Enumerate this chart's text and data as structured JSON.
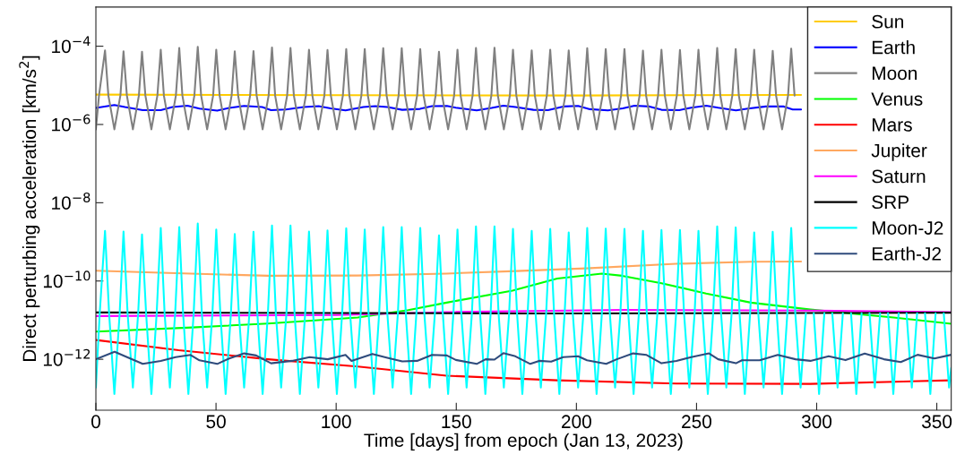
{
  "chart_data": {
    "type": "line",
    "xlabel": "Time [days] from epoch (Jan 13, 2023)",
    "ylabel": "Direct perturbing acceleration [km/s$^{2}$]",
    "log": "y",
    "legend": "top right",
    "line_style": "solid",
    "xlim": [
      0,
      356
    ],
    "xticks": [
      0,
      50,
      100,
      150,
      200,
      250,
      300,
      350
    ],
    "ylim": [
      5e-14,
      0.001
    ],
    "yticks": [
      {
        "value": 1e-12,
        "label": "10$^{−12}$"
      },
      {
        "value": 1e-10,
        "label": "10$^{−10}$"
      },
      {
        "value": 1e-08,
        "label": "10$^{−8}$"
      },
      {
        "value": 1e-06,
        "label": "10$^{−6}$"
      },
      {
        "value": 0.0001,
        "label": "10$^{−4}$"
      }
    ],
    "series": [
      {
        "name": "Sun",
        "color": "#ffcc00",
        "x": [
          0,
          100,
          200,
          293.5
        ],
        "values": [
          5.8e-06,
          5.6e-06,
          5.5e-06,
          5.7e-06
        ]
      },
      {
        "name": "Earth",
        "color": "#0000ff",
        "x": [
          0,
          7.7,
          12.1,
          19.5,
          27.0,
          31.9,
          38.1,
          43.1,
          50.5,
          55.5,
          61.7,
          69.2,
          72.9,
          79.1,
          86.5,
          92.7,
          97.7,
          103.9,
          111.3,
          116.3,
          121.3,
          127.5,
          134.9,
          139.9,
          146.1,
          149.8,
          158.5,
          164.7,
          169.6,
          174.6,
          182.1,
          188.2,
          194.5,
          200.7,
          205.6,
          213.1,
          219.3,
          224.2,
          230.4,
          235.4,
          242.8,
          247.8,
          254.0,
          259.0,
          266.4,
          271.4,
          278.8,
          286.3,
          290.0,
          293.5
        ],
        "values": [
          2.64e-06,
          3.14e-06,
          2.78e-06,
          2.33e-06,
          2.33e-06,
          2.78e-06,
          3.03e-06,
          2.54e-06,
          2.25e-06,
          2.64e-06,
          2.98e-06,
          2.78e-06,
          2.33e-06,
          2.42e-06,
          2.78e-06,
          2.93e-06,
          2.59e-06,
          2.29e-06,
          2.78e-06,
          2.93e-06,
          2.78e-06,
          2.37e-06,
          2.5e-06,
          2.93e-06,
          2.98e-06,
          2.68e-06,
          2.29e-06,
          2.64e-06,
          3.03e-06,
          2.78e-06,
          2.37e-06,
          2.33e-06,
          2.88e-06,
          2.98e-06,
          2.46e-06,
          2.29e-06,
          2.59e-06,
          3.03e-06,
          2.88e-06,
          2.37e-06,
          2.33e-06,
          2.68e-06,
          3.03e-06,
          2.68e-06,
          2.29e-06,
          2.54e-06,
          2.88e-06,
          2.88e-06,
          2.42e-06,
          2.42e-06
        ]
      },
      {
        "name": "Moon",
        "color": "#808080",
        "x": [
          0,
          1.3,
          3.8,
          5.2,
          7.7,
          10.2,
          11.5,
          12.9,
          15.4,
          17.9,
          19.2,
          20.6,
          23.1,
          25.6,
          27.0,
          28.3,
          30.8,
          33.3,
          34.7,
          36.0,
          38.5,
          41.0,
          42.4,
          43.8,
          46.3,
          48.8,
          50.1,
          51.5,
          54.0,
          56.5,
          57.8,
          59.2,
          61.7,
          64.2,
          65.6,
          66.9,
          69.4,
          71.9,
          73.3,
          74.6,
          77.1,
          79.6,
          81.0,
          82.4,
          84.9,
          87.4,
          88.7,
          90.1,
          92.6,
          95.1,
          96.4,
          97.8,
          100.3,
          102.8,
          104.2,
          105.5,
          108.0,
          110.5,
          111.9,
          113.2,
          115.7,
          118.2,
          119.6,
          121.0,
          123.5,
          126.0,
          127.3,
          128.7,
          131.2,
          133.7,
          135.0,
          136.4,
          138.9,
          141.4,
          142.8,
          144.1,
          146.6,
          149.1,
          150.5,
          151.8,
          154.3,
          156.8,
          158.2,
          159.6,
          162.1,
          164.6,
          165.9,
          167.3,
          169.8,
          172.3,
          173.6,
          175.0,
          177.5,
          180.0,
          181.4,
          182.7,
          185.2,
          187.7,
          189.1,
          190.4,
          192.9,
          195.4,
          196.8,
          198.2,
          200.7,
          203.2,
          204.5,
          205.9,
          208.4,
          210.9,
          212.2,
          213.6,
          216.1,
          218.6,
          220.0,
          221.3,
          223.8,
          226.3,
          227.7,
          229.0,
          231.5,
          234.0,
          235.4,
          236.8,
          239.3,
          241.8,
          243.1,
          244.5,
          247.0,
          249.5,
          250.8,
          252.2,
          254.7,
          257.2,
          258.6,
          259.9,
          262.4,
          264.9,
          266.3,
          267.6,
          270.1,
          272.6,
          274.0,
          275.4,
          277.9,
          280.4,
          281.7,
          283.1,
          285.6,
          288.1,
          289.4,
          290.8
        ],
        "values": [
          7.5e-07,
          5.5e-06,
          7.8e-05,
          5.5e-06,
          7.5e-07,
          5.5e-06,
          7.4e-05,
          5.5e-06,
          7.5e-07,
          5.5e-06,
          7.2e-05,
          5.5e-06,
          7.5e-07,
          5.5e-06,
          8.1e-05,
          5.5e-06,
          7.5e-07,
          5.5e-06,
          9e-05,
          5.5e-06,
          7.5e-07,
          5.5e-06,
          9.6e-05,
          5.5e-06,
          7.5e-07,
          5.5e-06,
          8.1e-05,
          5.5e-06,
          7.5e-07,
          5.5e-06,
          7.4e-05,
          5.5e-06,
          7.5e-07,
          5.5e-06,
          7.5e-05,
          5.5e-06,
          7.5e-07,
          5.5e-06,
          9.3e-05,
          5.5e-06,
          7.5e-07,
          5.5e-06,
          9e-05,
          5.5e-06,
          7.5e-07,
          5.5e-06,
          8.1e-05,
          5.5e-06,
          7.5e-07,
          5.5e-06,
          8e-05,
          5.5e-06,
          7.5e-07,
          5.5e-06,
          8.4e-05,
          5.5e-06,
          7.5e-07,
          5.5e-06,
          8.5e-05,
          5.5e-06,
          7.5e-07,
          5.5e-06,
          8.9e-05,
          5.5e-06,
          7.5e-07,
          5.5e-06,
          8.9e-05,
          5.5e-06,
          7.5e-07,
          5.5e-06,
          8.4e-05,
          5.5e-06,
          7.5e-07,
          5.5e-06,
          7.2e-05,
          5.5e-06,
          7.5e-07,
          5.5e-06,
          8.1e-05,
          5.5e-06,
          7.5e-07,
          5.5e-06,
          9e-05,
          5.5e-06,
          7.5e-07,
          5.5e-06,
          9.1e-05,
          5.5e-06,
          7.5e-07,
          5.5e-06,
          8.1e-05,
          5.5e-06,
          7.5e-07,
          5.5e-06,
          7.8e-05,
          5.5e-06,
          7.5e-07,
          5.5e-06,
          8.1e-05,
          5.5e-06,
          7.5e-07,
          5.5e-06,
          7.8e-05,
          5.5e-06,
          7.5e-07,
          5.5e-06,
          8.9e-05,
          5.5e-06,
          7.5e-07,
          5.5e-06,
          8.4e-05,
          5.5e-06,
          7.5e-07,
          5.5e-06,
          8.5e-05,
          5.5e-06,
          7.5e-07,
          5.5e-06,
          7.7e-05,
          5.5e-06,
          7.5e-07,
          5.5e-06,
          8.1e-05,
          5.5e-06,
          7.5e-07,
          5.5e-06,
          8e-05,
          5.5e-06,
          7.5e-07,
          5.5e-06,
          8.1e-05,
          5.5e-06,
          7.5e-07,
          5.5e-06,
          9e-05,
          5.5e-06,
          7.5e-07,
          5.5e-06,
          8.5e-05,
          5.5e-06,
          7.5e-07,
          5.5e-06,
          8.1e-05,
          5.5e-06,
          7.5e-07,
          5.5e-06,
          7.6e-05,
          5.5e-06,
          7.5e-07,
          5.5e-06,
          8.7e-05,
          5.5e-06
        ]
      },
      {
        "name": "Venus",
        "color": "#00ff00",
        "x": [
          0,
          40,
          71.6,
          109,
          130,
          146,
          173.4,
          192,
          210.6,
          219,
          235.4,
          254,
          272.6,
          297.4,
          332,
          356
        ],
        "values": [
          5.1e-12,
          6.5e-12,
          8.2e-12,
          1.17e-11,
          1.8e-11,
          2.8e-11,
          5.7e-11,
          1.15e-10,
          1.55e-10,
          1.36e-10,
          8.8e-11,
          4.8e-11,
          2.8e-11,
          1.86e-11,
          1.17e-11,
          8.1e-12
        ]
      },
      {
        "name": "Mars",
        "color": "#ff0000",
        "x": [
          0,
          34.4,
          71.6,
          109,
          146,
          192,
          241.6,
          297.4,
          356
        ],
        "values": [
          3.1e-12,
          1.7e-12,
          1e-12,
          6.5e-13,
          3.8e-13,
          2.9e-13,
          2.4e-13,
          2.35e-13,
          2.9e-13
        ]
      },
      {
        "name": "Jupiter",
        "color": "#ffa860",
        "x": [
          0,
          30,
          71.6,
          109,
          146,
          175,
          204,
          241.6,
          272.6,
          293.5
        ],
        "values": [
          1.83e-10,
          1.6e-10,
          1.36e-10,
          1.38e-10,
          1.55e-10,
          1.8e-10,
          2.1e-10,
          2.75e-10,
          3.1e-10,
          3.15e-10
        ]
      },
      {
        "name": "Saturn",
        "color": "#ff00ff",
        "x": [
          0,
          100,
          146,
          220,
          300,
          356
        ],
        "values": [
          1.27e-11,
          1.35e-11,
          1.6e-11,
          1.82e-11,
          1.75e-11,
          1.6e-11
        ]
      },
      {
        "name": "SRP",
        "color": "#000000",
        "x": [
          0,
          180,
          356
        ],
        "values": [
          1.57e-11,
          1.48e-11,
          1.55e-11
        ]
      },
      {
        "name": "Moon-J2",
        "color": "#00ffff",
        "x": [
          0,
          1.6,
          3.8,
          5.5,
          7.7,
          9.9,
          11.5,
          13.2,
          15.4,
          17.6,
          19.2,
          20.9,
          23.1,
          25.3,
          27.0,
          28.6,
          30.8,
          33.0,
          34.7,
          36.3,
          38.5,
          40.7,
          42.4,
          44.1,
          46.3,
          48.5,
          50.1,
          51.8,
          54.0,
          56.2,
          57.8,
          59.5,
          61.7,
          63.9,
          65.6,
          67.2,
          69.4,
          71.6,
          73.3,
          74.9,
          77.1,
          79.3,
          81.0,
          82.7,
          84.9,
          87.1,
          88.7,
          90.4,
          92.6,
          94.8,
          96.4,
          98.1,
          100.3,
          102.5,
          104.2,
          105.8,
          108.0,
          110.2,
          111.9,
          113.5,
          115.7,
          117.9,
          119.6,
          121.3,
          123.5,
          125.7,
          127.3,
          129.0,
          131.2,
          133.4,
          135.0,
          136.7,
          138.9,
          141.1,
          142.8,
          144.4,
          146.6,
          148.8,
          150.5,
          152.1,
          154.3,
          156.5,
          158.2,
          159.9,
          162.1,
          164.3,
          165.9,
          167.6,
          169.8,
          172.0,
          173.6,
          175.3,
          177.5,
          179.7,
          181.4,
          183.0,
          185.2,
          187.4,
          189.1,
          190.7,
          192.9,
          195.1,
          196.8,
          198.5,
          200.7,
          202.9,
          204.5,
          206.2,
          208.4,
          210.6,
          212.2,
          213.9,
          216.1,
          218.3,
          220.0,
          221.6,
          223.8,
          226.0,
          227.7,
          229.3,
          231.5,
          233.7,
          235.4,
          237.1,
          239.3,
          241.5,
          243.1,
          244.8,
          247.0,
          249.2,
          250.8,
          252.5,
          254.7,
          256.9,
          258.6,
          260.2,
          262.4,
          264.6,
          266.3,
          267.9,
          270.1,
          272.3,
          274.0,
          275.7,
          277.9,
          280.1,
          281.7,
          283.4,
          285.6,
          287.8,
          289.4,
          291.1,
          293.3,
          295.5,
          297.2,
          298.8,
          301.0,
          303.2,
          304.9,
          306.5,
          308.7,
          310.9,
          312.6,
          314.3,
          316.5,
          318.7,
          320.3,
          322.0,
          324.2,
          326.4,
          328.0,
          329.7,
          331.9,
          334.1,
          335.8,
          337.4,
          339.6,
          341.8,
          343.5,
          345.1,
          347.3,
          349.5,
          351.2,
          352.9,
          355.1,
          356
        ],
        "values": [
          1.9e-13,
          1.5e-11,
          1.9e-09,
          1.5e-11,
          1.3e-13,
          1.5e-11,
          1.83e-09,
          1.5e-11,
          1.9e-13,
          1.5e-11,
          1.54e-09,
          1.5e-11,
          1.3e-13,
          1.5e-11,
          2.26e-09,
          1.5e-11,
          1.9e-13,
          1.5e-11,
          2.39e-09,
          1.5e-11,
          1.3e-13,
          1.5e-11,
          2.95e-09,
          1.5e-11,
          1.9e-13,
          1.5e-11,
          2.07e-09,
          1.5e-11,
          1.3e-13,
          1.5e-11,
          1.59e-09,
          1.5e-11,
          1.9e-13,
          1.5e-11,
          1.8e-09,
          1.5e-11,
          1.3e-13,
          1.5e-11,
          2.61e-09,
          1.5e-11,
          1.9e-13,
          1.5e-11,
          2.61e-09,
          1.5e-11,
          1.3e-13,
          1.5e-11,
          1.83e-09,
          1.5e-11,
          1.9e-13,
          1.5e-11,
          1.96e-09,
          1.5e-11,
          1.3e-13,
          1.5e-11,
          2.22e-09,
          1.5e-11,
          1.9e-13,
          1.5e-11,
          2.07e-09,
          1.5e-11,
          1.3e-13,
          1.5e-11,
          2.39e-09,
          1.5e-11,
          1.9e-13,
          1.5e-11,
          2.39e-09,
          1.5e-11,
          1.3e-13,
          1.5e-11,
          2.26e-09,
          1.5e-11,
          1.9e-13,
          1.5e-11,
          1.46e-09,
          1.5e-11,
          1.3e-13,
          1.5e-11,
          2.07e-09,
          1.5e-11,
          1.9e-13,
          1.5e-11,
          2.48e-09,
          1.5e-11,
          1.3e-13,
          1.5e-11,
          2.48e-09,
          1.5e-11,
          1.9e-13,
          1.5e-11,
          2.15e-09,
          1.5e-11,
          1.3e-13,
          1.5e-11,
          1.9e-09,
          1.5e-11,
          1.9e-13,
          1.5e-11,
          2.15e-09,
          1.5e-11,
          1.3e-13,
          1.5e-11,
          1.74e-09,
          1.5e-11,
          1.9e-13,
          1.5e-11,
          2.26e-09,
          1.5e-11,
          1.3e-13,
          1.5e-11,
          2.18e-09,
          1.5e-11,
          1.9e-13,
          1.5e-11,
          2.15e-09,
          1.5e-11,
          1.3e-13,
          1.5e-11,
          1.9e-09,
          1.5e-11,
          1.9e-13,
          1.5e-11,
          2e-09,
          1.5e-11,
          1.3e-13,
          1.5e-11,
          2e-09,
          1.5e-11,
          1.9e-13,
          1.5e-11,
          1.9e-09,
          1.5e-11,
          1.3e-13,
          1.5e-11,
          2.48e-09,
          1.5e-11,
          1.9e-13,
          1.5e-11,
          2.34e-09,
          1.5e-11,
          1.3e-13,
          1.5e-11,
          1.74e-09,
          1.5e-11,
          1.9e-13,
          1.5e-11,
          1.8e-09,
          1.5e-11,
          1.3e-13,
          1.5e-11,
          2.26e-09,
          1.5e-11,
          1.9e-13,
          1.5e-11,
          null,
          1.5e-11,
          1.3e-13,
          1.5e-11,
          null,
          1.5e-11,
          1.9e-13,
          1.5e-11,
          null,
          1.5e-11,
          1.3e-13,
          1.5e-11,
          null,
          1.5e-11,
          1.9e-13,
          1.5e-11,
          null,
          1.5e-11,
          1.3e-13,
          1.5e-11,
          null,
          1.5e-11,
          1.9e-13,
          1.5e-11,
          null,
          1.5e-11,
          1.3e-13,
          1.5e-11,
          null,
          1.5e-11,
          1.9e-13,
          6e-13
        ]
      },
      {
        "name": "Earth-J2",
        "color": "#2f4b7c",
        "x": [
          0,
          7.8,
          12.1,
          19.5,
          27.0,
          33.2,
          39.4,
          43.1,
          50.5,
          55.5,
          61.7,
          66.7,
          72.9,
          81.6,
          89.0,
          96.5,
          103.9,
          106.4,
          115.1,
          121.3,
          127.5,
          133.7,
          139.9,
          146.1,
          149.8,
          158.5,
          162.2,
          165.9,
          169.6,
          174.6,
          180.8,
          184.5,
          189.5,
          194.5,
          200.7,
          204.4,
          212.4,
          216.8,
          223.6,
          229.2,
          235.4,
          241.6,
          247.8,
          255.2,
          259.0,
          266.4,
          268.9,
          276.3,
          283.8,
          291.2,
          297.4,
          305,
          312,
          320,
          328,
          335,
          342,
          349,
          356
        ],
        "values": [
          1e-12,
          1.55e-12,
          1.19e-12,
          7.6e-13,
          9.1e-13,
          1.13e-12,
          1.29e-12,
          9.4e-13,
          7.6e-13,
          1.05e-12,
          1.41e-12,
          1.25e-12,
          7.9e-13,
          9.1e-13,
          1.13e-12,
          1e-12,
          1.29e-12,
          9.1e-13,
          1.37e-12,
          1.09e-12,
          8.8e-13,
          9.1e-13,
          1.29e-12,
          1.25e-12,
          9.6e-13,
          7.6e-13,
          1e-12,
          9.8e-13,
          1.43e-12,
          1.19e-12,
          7.6e-13,
          9.1e-13,
          8.7e-13,
          1.13e-12,
          1.19e-12,
          9.4e-13,
          7.6e-13,
          1e-12,
          1.41e-12,
          1.29e-12,
          7.9e-13,
          9.1e-13,
          1.13e-12,
          1.41e-12,
          1e-12,
          7.9e-13,
          9.4e-13,
          9.4e-13,
          1.29e-12,
          1e-12,
          9.1e-13,
          1.2e-12,
          9.5e-13,
          1.4e-12,
          1e-12,
          8.5e-13,
          1.3e-12,
          1.05e-12,
          1.3e-12
        ]
      }
    ]
  }
}
